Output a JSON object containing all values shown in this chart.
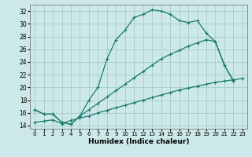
{
  "xlabel": "Humidex (Indice chaleur)",
  "background_color": "#cce8e8",
  "grid_color": "#aacccc",
  "line_color": "#1a7a6e",
  "xlim": [
    -0.5,
    23.5
  ],
  "ylim": [
    13.5,
    33.0
  ],
  "xticks": [
    0,
    1,
    2,
    3,
    4,
    5,
    6,
    7,
    8,
    9,
    10,
    11,
    12,
    13,
    14,
    15,
    16,
    17,
    18,
    19,
    20,
    21,
    22,
    23
  ],
  "yticks": [
    14,
    16,
    18,
    20,
    22,
    24,
    26,
    28,
    30,
    32
  ],
  "curve1_x": [
    0,
    1,
    2,
    3,
    4,
    5,
    6,
    7,
    8,
    9,
    10,
    11,
    12,
    13,
    14,
    15,
    16,
    17,
    18,
    19,
    20,
    21,
    22
  ],
  "curve1_y": [
    16.5,
    15.8,
    15.8,
    14.5,
    14.2,
    15.5,
    18.0,
    20.0,
    24.5,
    27.5,
    29.0,
    31.0,
    31.5,
    32.2,
    32.0,
    31.5,
    30.5,
    30.2,
    30.5,
    28.5,
    27.2,
    23.5,
    21.0
  ],
  "curve2_x": [
    0,
    1,
    2,
    3,
    4,
    5,
    6,
    7,
    8,
    9,
    10,
    11,
    12,
    13,
    14,
    15,
    16,
    17,
    18,
    19,
    20,
    21,
    22
  ],
  "curve2_y": [
    16.5,
    15.8,
    15.8,
    14.5,
    14.2,
    15.5,
    16.5,
    17.5,
    18.5,
    19.5,
    20.5,
    21.5,
    22.5,
    23.5,
    24.5,
    25.2,
    25.8,
    26.5,
    27.0,
    27.5,
    27.2,
    23.5,
    21.0
  ],
  "curve3_x": [
    0,
    1,
    2,
    3,
    4,
    5,
    6,
    7,
    8,
    9,
    10,
    11,
    12,
    13,
    14,
    15,
    16,
    17,
    18,
    19,
    20,
    21,
    22,
    23
  ],
  "curve3_y": [
    14.5,
    14.7,
    14.9,
    14.3,
    14.8,
    15.2,
    15.5,
    16.0,
    16.4,
    16.8,
    17.2,
    17.6,
    18.0,
    18.4,
    18.8,
    19.2,
    19.6,
    19.9,
    20.2,
    20.5,
    20.8,
    21.0,
    21.2,
    21.4
  ]
}
